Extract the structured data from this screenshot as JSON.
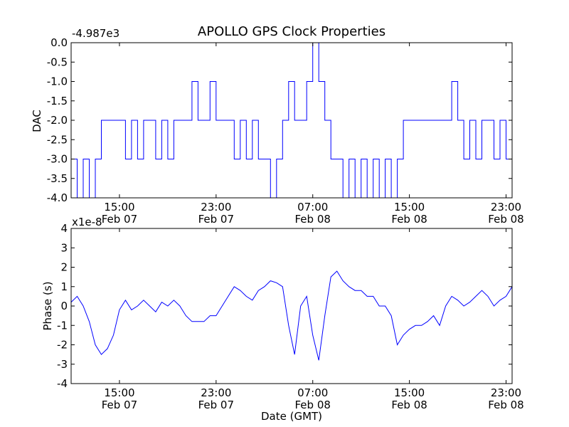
{
  "chart_data": [
    {
      "type": "line",
      "title": "APOLLO GPS Clock Properties",
      "ylabel": "DAC",
      "offset_label": "-4.987e3",
      "ylim": [
        -4.0,
        0.0
      ],
      "yticks": [
        0.0,
        -0.5,
        -1.0,
        -1.5,
        -2.0,
        -2.5,
        -3.0,
        -3.5,
        -4.0
      ],
      "ytick_labels": [
        "0.0",
        "-0.5",
        "-1.0",
        "-1.5",
        "-2.0",
        "-2.5",
        "-3.0",
        "-3.5",
        "-4.0"
      ],
      "xlim": [
        "Feb 07 11:00",
        "Feb 08 23:30"
      ],
      "xticks": [
        "Feb 07 15:00",
        "Feb 07 23:00",
        "Feb 08 07:00",
        "Feb 08 15:00",
        "Feb 08 23:00"
      ],
      "xtick_labels": [
        [
          "15:00",
          "Feb 07"
        ],
        [
          "23:00",
          "Feb 07"
        ],
        [
          "07:00",
          "Feb 08"
        ],
        [
          "15:00",
          "Feb 08"
        ],
        [
          "23:00",
          "Feb 08"
        ]
      ],
      "series": [
        {
          "x": [
            "Feb 07 11:00",
            "Feb 07 11:30",
            "Feb 07 12:00",
            "Feb 07 12:30",
            "Feb 07 13:00",
            "Feb 07 13:30",
            "Feb 07 14:00",
            "Feb 07 14:30",
            "Feb 07 15:00",
            "Feb 07 15:30",
            "Feb 07 16:00",
            "Feb 07 16:30",
            "Feb 07 17:00",
            "Feb 07 17:30",
            "Feb 07 18:00",
            "Feb 07 18:30",
            "Feb 07 19:00",
            "Feb 07 19:30",
            "Feb 07 20:00",
            "Feb 07 20:30",
            "Feb 07 21:00",
            "Feb 07 21:30",
            "Feb 07 22:00",
            "Feb 07 22:30",
            "Feb 07 23:00",
            "Feb 07 23:30",
            "Feb 08 00:00",
            "Feb 08 00:30",
            "Feb 08 01:00",
            "Feb 08 01:30",
            "Feb 08 02:00",
            "Feb 08 02:30",
            "Feb 08 03:00",
            "Feb 08 03:30",
            "Feb 08 04:00",
            "Feb 08 04:30",
            "Feb 08 05:00",
            "Feb 08 05:30",
            "Feb 08 06:00",
            "Feb 08 06:30",
            "Feb 08 07:00",
            "Feb 08 07:30",
            "Feb 08 08:00",
            "Feb 08 08:30",
            "Feb 08 09:00",
            "Feb 08 09:30",
            "Feb 08 10:00",
            "Feb 08 10:30",
            "Feb 08 11:00",
            "Feb 08 11:30",
            "Feb 08 12:00",
            "Feb 08 12:30",
            "Feb 08 13:00",
            "Feb 08 13:30",
            "Feb 08 14:00",
            "Feb 08 14:30",
            "Feb 08 15:00",
            "Feb 08 15:30",
            "Feb 08 16:00",
            "Feb 08 16:30",
            "Feb 08 17:00",
            "Feb 08 17:30",
            "Feb 08 18:00",
            "Feb 08 18:30",
            "Feb 08 19:00",
            "Feb 08 19:30",
            "Feb 08 20:00",
            "Feb 08 20:30",
            "Feb 08 21:00",
            "Feb 08 21:30",
            "Feb 08 22:00",
            "Feb 08 22:30",
            "Feb 08 23:00",
            "Feb 08 23:30"
          ],
          "y": [
            -3.0,
            -4.0,
            -3.0,
            -4.0,
            -3.0,
            -2.0,
            -2.0,
            -2.0,
            -2.0,
            -3.0,
            -2.0,
            -3.0,
            -2.0,
            -2.0,
            -3.0,
            -2.0,
            -3.0,
            -2.0,
            -2.0,
            -2.0,
            -1.0,
            -2.0,
            -2.0,
            -1.0,
            -2.0,
            -2.0,
            -2.0,
            -3.0,
            -2.0,
            -3.0,
            -2.0,
            -3.0,
            -3.0,
            -4.0,
            -3.0,
            -2.0,
            -1.0,
            -2.0,
            -2.0,
            -1.0,
            0.0,
            -1.0,
            -2.0,
            -3.0,
            -3.0,
            -4.0,
            -3.0,
            -4.0,
            -3.0,
            -4.0,
            -3.0,
            -4.0,
            -3.0,
            -4.0,
            -3.0,
            -2.0,
            -2.0,
            -2.0,
            -2.0,
            -2.0,
            -2.0,
            -2.0,
            -2.0,
            -1.0,
            -2.0,
            -3.0,
            -2.0,
            -3.0,
            -2.0,
            -2.0,
            -3.0,
            -2.0,
            -3.0,
            -2.0
          ]
        }
      ]
    },
    {
      "type": "line",
      "ylabel": "Phase (s)",
      "xlabel": "Date (GMT)",
      "offset_label": "x1e-8",
      "ylim": [
        -4,
        4
      ],
      "yticks": [
        4,
        3,
        2,
        1,
        0,
        -1,
        -2,
        -3,
        -4
      ],
      "ytick_labels": [
        "4",
        "3",
        "2",
        "1",
        "0",
        "-1",
        "-2",
        "-3",
        "-4"
      ],
      "xlim": [
        "Feb 07 11:00",
        "Feb 08 23:30"
      ],
      "xticks": [
        "Feb 07 15:00",
        "Feb 07 23:00",
        "Feb 08 07:00",
        "Feb 08 15:00",
        "Feb 08 23:00"
      ],
      "xtick_labels": [
        [
          "15:00",
          "Feb 07"
        ],
        [
          "23:00",
          "Feb 07"
        ],
        [
          "07:00",
          "Feb 08"
        ],
        [
          "15:00",
          "Feb 08"
        ],
        [
          "23:00",
          "Feb 08"
        ]
      ],
      "series": [
        {
          "x": [
            "Feb 07 11:00",
            "Feb 07 11:30",
            "Feb 07 12:00",
            "Feb 07 12:30",
            "Feb 07 13:00",
            "Feb 07 13:30",
            "Feb 07 14:00",
            "Feb 07 14:30",
            "Feb 07 15:00",
            "Feb 07 15:30",
            "Feb 07 16:00",
            "Feb 07 16:30",
            "Feb 07 17:00",
            "Feb 07 17:30",
            "Feb 07 18:00",
            "Feb 07 18:30",
            "Feb 07 19:00",
            "Feb 07 19:30",
            "Feb 07 20:00",
            "Feb 07 20:30",
            "Feb 07 21:00",
            "Feb 07 21:30",
            "Feb 07 22:00",
            "Feb 07 22:30",
            "Feb 07 23:00",
            "Feb 07 23:30",
            "Feb 08 00:00",
            "Feb 08 00:30",
            "Feb 08 01:00",
            "Feb 08 01:30",
            "Feb 08 02:00",
            "Feb 08 02:30",
            "Feb 08 03:00",
            "Feb 08 03:30",
            "Feb 08 04:00",
            "Feb 08 04:30",
            "Feb 08 05:00",
            "Feb 08 05:30",
            "Feb 08 06:00",
            "Feb 08 06:30",
            "Feb 08 07:00",
            "Feb 08 07:30",
            "Feb 08 08:00",
            "Feb 08 08:30",
            "Feb 08 09:00",
            "Feb 08 09:30",
            "Feb 08 10:00",
            "Feb 08 10:30",
            "Feb 08 11:00",
            "Feb 08 11:30",
            "Feb 08 12:00",
            "Feb 08 12:30",
            "Feb 08 13:00",
            "Feb 08 13:30",
            "Feb 08 14:00",
            "Feb 08 14:30",
            "Feb 08 15:00",
            "Feb 08 15:30",
            "Feb 08 16:00",
            "Feb 08 16:30",
            "Feb 08 17:00",
            "Feb 08 17:30",
            "Feb 08 18:00",
            "Feb 08 18:30",
            "Feb 08 19:00",
            "Feb 08 19:30",
            "Feb 08 20:00",
            "Feb 08 20:30",
            "Feb 08 21:00",
            "Feb 08 21:30",
            "Feb 08 22:00",
            "Feb 08 22:30",
            "Feb 08 23:00",
            "Feb 08 23:30"
          ],
          "y": [
            0.2,
            0.5,
            0.0,
            -0.8,
            -2.0,
            -2.5,
            -2.2,
            -1.5,
            -0.2,
            0.3,
            -0.2,
            0.0,
            0.3,
            0.0,
            -0.3,
            0.2,
            0.0,
            0.3,
            0.0,
            -0.5,
            -0.8,
            -0.8,
            -0.8,
            -0.5,
            -0.5,
            0.0,
            0.5,
            1.0,
            0.8,
            0.5,
            0.3,
            0.8,
            1.0,
            1.3,
            1.2,
            1.0,
            -1.0,
            -2.5,
            0.0,
            0.5,
            -1.5,
            -2.8,
            -0.5,
            1.5,
            1.8,
            1.3,
            1.0,
            0.8,
            0.8,
            0.5,
            0.5,
            0.0,
            0.0,
            -0.5,
            -2.0,
            -1.5,
            -1.2,
            -1.0,
            -1.0,
            -0.8,
            -0.5,
            -1.0,
            0.0,
            0.5,
            0.3,
            0.0,
            0.2,
            0.5,
            0.8,
            0.5,
            0.0,
            0.3,
            0.5,
            1.0
          ]
        }
      ]
    }
  ]
}
